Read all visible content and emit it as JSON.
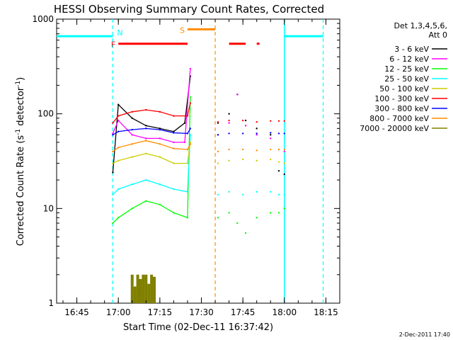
{
  "chart_data": {
    "type": "line",
    "title": "HESSI Observing Summary Count Rates, Corrected",
    "xlabel": "Start Time (02-Dec-11 16:37:42)",
    "ylabel": "Corrected Count Rate (s",
    "ylabel_sup1": "-1",
    "ylabel_mid": " detector",
    "ylabel_sup2": "-1",
    "ylabel_end": ")",
    "y_scale": "log",
    "ylim": [
      1,
      1000
    ],
    "xlim": [
      "16:37:42",
      "18:20:00"
    ],
    "x_ticks": [
      "16:45",
      "17:00",
      "17:15",
      "17:30",
      "17:45",
      "18:00",
      "18:15"
    ],
    "y_ticks": [
      "1",
      "10",
      "100",
      "1000"
    ],
    "legend_header": [
      "Det 1,3,4,5,6,",
      "Att 0"
    ],
    "legend_position": "right",
    "timestamp": "2-Dec-2011 17:40",
    "series": [
      {
        "name": "3 - 6 keV",
        "color": "#000000",
        "x": [
          "16:58",
          "17:00",
          "17:05",
          "17:10",
          "17:15",
          "17:20",
          "17:24",
          "17:26",
          "17:36",
          "17:40",
          "17:43",
          "17:46",
          "17:50",
          "17:55",
          "17:58",
          "18:00"
        ],
        "values": [
          24,
          125,
          90,
          75,
          70,
          65,
          80,
          250,
          80,
          100,
          160,
          85,
          70,
          60,
          25,
          23
        ]
      },
      {
        "name": "6 - 12 keV",
        "color": "#ff00ff",
        "x": [
          "16:58",
          "17:00",
          "17:05",
          "17:10",
          "17:15",
          "17:20",
          "17:24",
          "17:26",
          "17:36",
          "17:40",
          "17:43",
          "17:46",
          "17:50",
          "17:55",
          "17:58",
          "18:00"
        ],
        "values": [
          62,
          85,
          60,
          55,
          55,
          50,
          50,
          300,
          60,
          80,
          160,
          75,
          60,
          55,
          42,
          40
        ]
      },
      {
        "name": "12 - 25 keV",
        "color": "#00ff00",
        "x": [
          "16:58",
          "17:00",
          "17:05",
          "17:10",
          "17:15",
          "17:20",
          "17:25",
          "17:26",
          "17:36",
          "17:40",
          "17:43",
          "17:46",
          "17:50",
          "17:55",
          "17:58",
          "18:00"
        ],
        "values": [
          7,
          8,
          10,
          12,
          11,
          9,
          8,
          150,
          8,
          9,
          7,
          5.5,
          8,
          9,
          9,
          10
        ]
      },
      {
        "name": "25 - 50 keV",
        "color": "#00ffff",
        "x": [
          "16:58",
          "17:00",
          "17:05",
          "17:10",
          "17:15",
          "17:20",
          "17:25",
          "17:26",
          "17:36",
          "17:40",
          "17:45",
          "17:50",
          "17:55",
          "17:58",
          "18:00"
        ],
        "values": [
          14,
          16,
          18,
          20,
          18,
          16,
          15,
          60,
          14,
          15,
          14,
          15,
          15,
          14,
          14
        ]
      },
      {
        "name": "50 - 100 keV",
        "color": "#cccc00",
        "x": [
          "16:58",
          "17:00",
          "17:05",
          "17:10",
          "17:15",
          "17:20",
          "17:25",
          "17:26",
          "17:36",
          "17:40",
          "17:45",
          "17:50",
          "17:55",
          "17:58",
          "18:00"
        ],
        "values": [
          30,
          32,
          35,
          38,
          35,
          30,
          30,
          50,
          30,
          32,
          33,
          32,
          33,
          31,
          30
        ]
      },
      {
        "name": "100 - 300 keV",
        "color": "#ff0000",
        "x": [
          "16:58",
          "17:00",
          "17:05",
          "17:10",
          "17:15",
          "17:20",
          "17:25",
          "17:26",
          "17:36",
          "17:40",
          "17:45",
          "17:50",
          "17:55",
          "17:58",
          "18:00"
        ],
        "values": [
          80,
          95,
          105,
          110,
          105,
          95,
          95,
          130,
          82,
          85,
          85,
          82,
          84,
          84,
          84
        ]
      },
      {
        "name": "300 - 800 keV",
        "color": "#0000ff",
        "x": [
          "16:58",
          "17:00",
          "17:05",
          "17:10",
          "17:15",
          "17:20",
          "17:25",
          "17:26",
          "17:36",
          "17:40",
          "17:45",
          "17:50",
          "17:55",
          "17:58",
          "18:00"
        ],
        "values": [
          60,
          65,
          68,
          70,
          68,
          63,
          62,
          70,
          60,
          62,
          62,
          62,
          63,
          62,
          62
        ]
      },
      {
        "name": "800 - 7000 keV",
        "color": "#ff8c00",
        "x": [
          "16:58",
          "17:00",
          "17:05",
          "17:10",
          "17:15",
          "17:20",
          "17:25",
          "17:26",
          "17:36",
          "17:40",
          "17:45",
          "17:50",
          "17:55",
          "17:58",
          "18:00"
        ],
        "values": [
          40,
          44,
          48,
          52,
          48,
          43,
          42,
          48,
          40,
          42,
          42,
          41,
          42,
          42,
          42
        ]
      },
      {
        "name": "7000 - 20000 keV",
        "color": "#808000",
        "x": [
          "17:05",
          "17:06",
          "17:07",
          "17:08",
          "17:09",
          "17:10",
          "17:11",
          "17:12",
          "17:13"
        ],
        "values": [
          2,
          1.5,
          2,
          1.8,
          2,
          2,
          1.6,
          2,
          1.9
        ]
      }
    ],
    "flags": [
      {
        "label": "N",
        "color": "#00ffff",
        "segments": [
          [
            "16:37:42",
            "16:58"
          ],
          [
            "18:00",
            "18:14"
          ]
        ],
        "level": 660
      },
      {
        "label": "F",
        "color": "#ff0000",
        "segments": [
          [
            "17:00",
            "17:25"
          ],
          [
            "17:40",
            "17:46"
          ],
          [
            "17:50",
            "17:51"
          ]
        ],
        "level": 550
      },
      {
        "label": "S",
        "color": "#ff8c00",
        "segments": [
          [
            "17:25",
            "17:35"
          ]
        ],
        "level": 780
      }
    ],
    "dashed_lines": [
      {
        "color": "#00ffff",
        "x": "16:58"
      },
      {
        "color": "#ff8c00",
        "x": "17:35"
      },
      {
        "color": "#00ffff",
        "x": "18:14"
      }
    ],
    "solid_lines": [
      {
        "color": "#00ffff",
        "x": "18:00"
      }
    ],
    "gaps": [
      [
        "17:25",
        "17:35"
      ]
    ]
  }
}
